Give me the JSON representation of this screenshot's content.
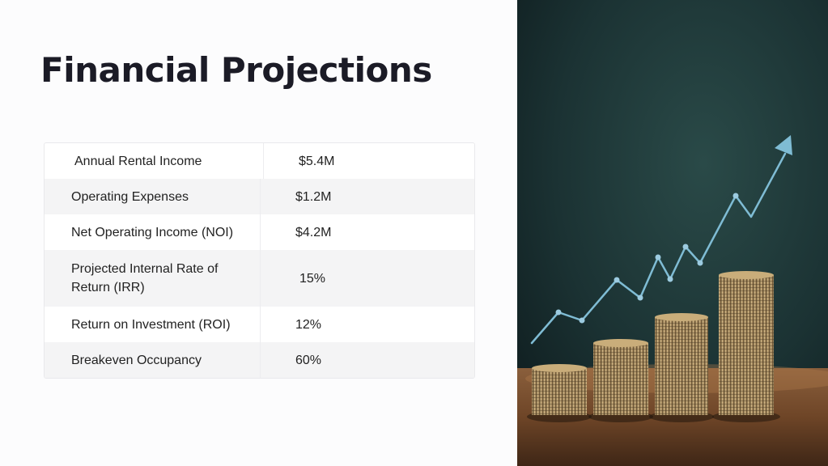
{
  "slide": {
    "title": "Financial Projections"
  },
  "table": {
    "rows": [
      {
        "label": "Annual Rental Income",
        "value": "$5.4M"
      },
      {
        "label": "Operating Expenses",
        "value": "$1.2M"
      },
      {
        "label": "Net Operating Income (NOI)",
        "value": "$4.2M"
      },
      {
        "label": "Projected Internal Rate of Return (IRR)",
        "value": "15%"
      },
      {
        "label": "Return on Investment (ROI)",
        "value": "12%"
      },
      {
        "label": "Breakeven Occupancy",
        "value": "60%"
      }
    ]
  },
  "image": {
    "subject": "stacked-coins-with-rising-arrow",
    "colors": {
      "background": "#1f3a3a",
      "arrow": "#7fbcd4",
      "coin": "#b89a68",
      "table_wood": "#7a4f2e"
    }
  }
}
